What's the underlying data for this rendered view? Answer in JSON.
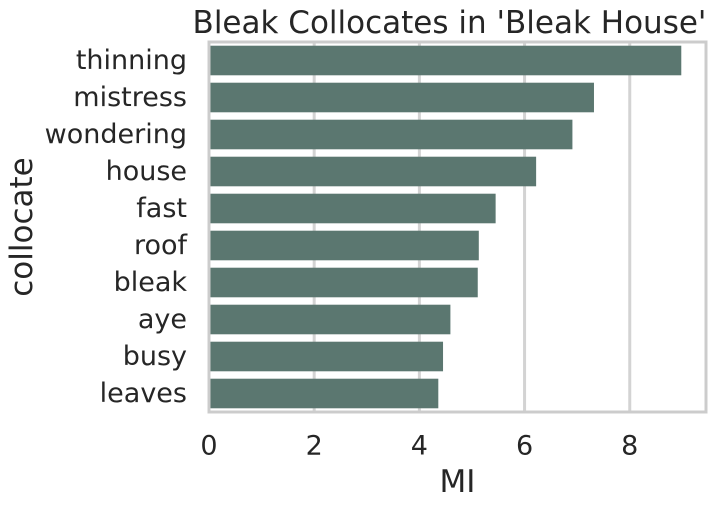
{
  "chart_data": {
    "type": "bar",
    "orientation": "horizontal",
    "title": "Bleak Collocates in 'Bleak House'",
    "xlabel": "MI",
    "ylabel": "collocate",
    "categories": [
      "thinning",
      "mistress",
      "wondering",
      "house",
      "fast",
      "roof",
      "bleak",
      "aye",
      "busy",
      "leaves"
    ],
    "values": [
      8.98,
      7.32,
      6.91,
      6.22,
      5.45,
      5.13,
      5.11,
      4.59,
      4.45,
      4.36
    ],
    "xlim": [
      0,
      9.45
    ],
    "xticks": [
      0,
      2,
      4,
      6,
      8
    ],
    "grid": true,
    "colors": {
      "bar": "#5b7770",
      "grid": "#d3d3d3",
      "frame": "#cccccc",
      "text": "#262626"
    }
  }
}
